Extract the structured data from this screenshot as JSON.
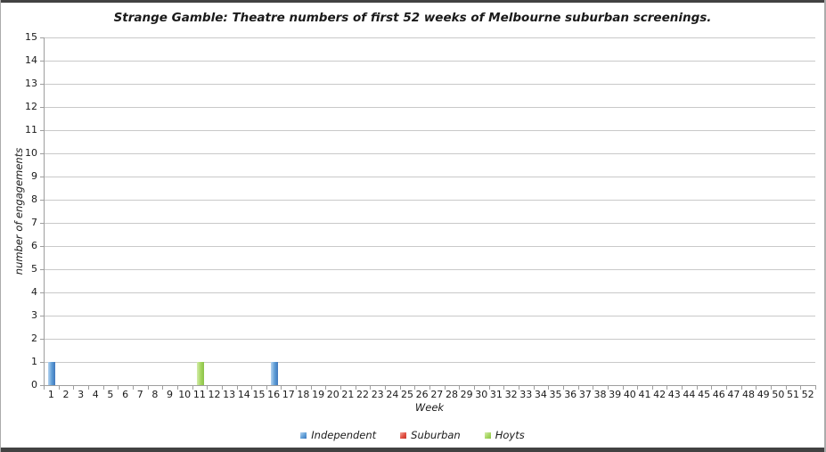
{
  "frame": {
    "background": "#ffffff",
    "top_bottom_border_color": "#424242",
    "side_border_color": "#ababab"
  },
  "chart_data": {
    "type": "bar",
    "title": "Strange Gamble: Theatre numbers of first 52 weeks of Melbourne suburban screenings.",
    "xlabel": "Week",
    "ylabel": "number of engagements",
    "ylim": [
      0,
      15
    ],
    "ytick_step": 1,
    "yticks": [
      0,
      1,
      2,
      3,
      4,
      5,
      6,
      7,
      8,
      9,
      10,
      11,
      12,
      13,
      14,
      15
    ],
    "weeks": [
      1,
      2,
      3,
      4,
      5,
      6,
      7,
      8,
      9,
      10,
      11,
      12,
      13,
      14,
      15,
      16,
      17,
      18,
      19,
      20,
      21,
      22,
      23,
      24,
      25,
      26,
      27,
      28,
      29,
      30,
      31,
      32,
      33,
      34,
      35,
      36,
      37,
      38,
      39,
      40,
      41,
      42,
      43,
      44,
      45,
      46,
      47,
      48,
      49,
      50,
      51,
      52
    ],
    "grid": true,
    "legend_position": "bottom",
    "series": [
      {
        "name": "Independent",
        "color": "#5b9bd5",
        "gradient": [
          "#b3d2f0",
          "#5b9bd5",
          "#4178bc"
        ],
        "points": [
          {
            "week": 1,
            "value": 1
          },
          {
            "week": 16,
            "value": 1
          }
        ]
      },
      {
        "name": "Suburban",
        "color": "#e04a3d",
        "gradient": [
          "#f2a89e",
          "#e04a3d",
          "#c23a2f"
        ],
        "points": []
      },
      {
        "name": "Hoyts",
        "color": "#a4d55e",
        "gradient": [
          "#d4ecab",
          "#a4d55e",
          "#8cc24a"
        ],
        "points": [
          {
            "week": 11,
            "value": 1
          }
        ]
      }
    ],
    "colors": {
      "gridline": "#c9c9c9",
      "axis_line": "#9e9e9e",
      "text": "#1a1a1a"
    }
  }
}
